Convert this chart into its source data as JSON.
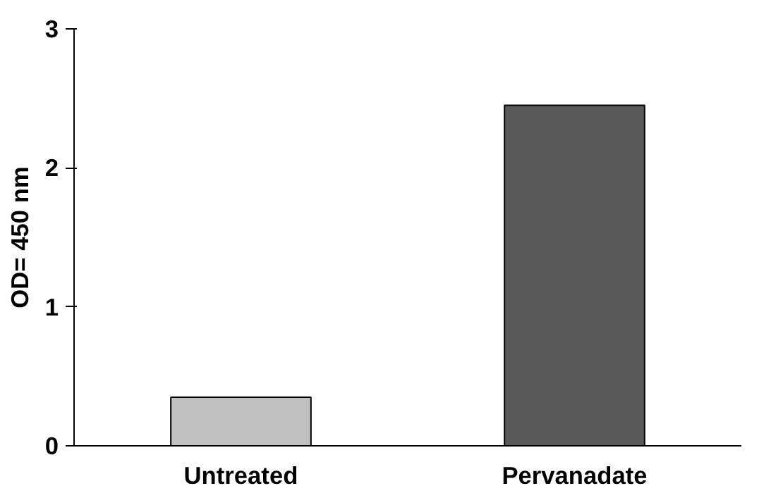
{
  "chart_data": {
    "type": "bar",
    "ylabel": "OD= 450 nm",
    "categories": [
      "Untreated",
      "Pervanadate"
    ],
    "values": [
      0.35,
      2.45
    ],
    "colors": [
      "#c0c0c0",
      "#595959"
    ],
    "ylim": [
      0,
      3
    ],
    "yticks": [
      0,
      1,
      2,
      3
    ],
    "grid": false
  }
}
